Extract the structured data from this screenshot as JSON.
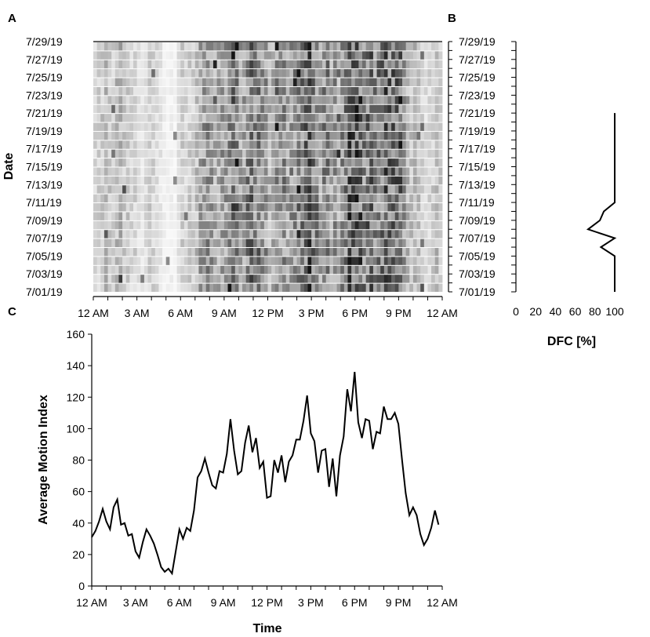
{
  "panels": {
    "a_label": "A",
    "b_label": "B",
    "c_label": "C"
  },
  "chart_data": [
    {
      "type": "heatmap",
      "panel": "A",
      "title": "",
      "xlabel": "",
      "ylabel": "Date",
      "x_tick_labels": [
        "12 AM",
        "3 AM",
        "6 AM",
        "9 AM",
        "12 PM",
        "3 PM",
        "6 PM",
        "9 PM",
        "12 AM"
      ],
      "y_tick_labels": [
        "7/01/19",
        "7/03/19",
        "7/05/19",
        "7/07/19",
        "7/09/19",
        "7/11/19",
        "7/13/19",
        "7/15/19",
        "7/17/19",
        "7/19/19",
        "7/21/19",
        "7/23/19",
        "7/25/19",
        "7/27/19",
        "7/29/19"
      ],
      "rows": [
        "7/01/19",
        "7/02/19",
        "7/03/19",
        "7/04/19",
        "7/05/19",
        "7/06/19",
        "7/07/19",
        "7/08/19",
        "7/09/19",
        "7/10/19",
        "7/11/19",
        "7/12/19",
        "7/13/19",
        "7/14/19",
        "7/15/19",
        "7/16/19",
        "7/17/19",
        "7/18/19",
        "7/19/19",
        "7/20/19",
        "7/21/19",
        "7/22/19",
        "7/23/19",
        "7/24/19",
        "7/25/19",
        "7/26/19",
        "7/27/19",
        "7/28/19",
        "7/29/19"
      ],
      "x_bins": 96,
      "colormap": "white-to-black",
      "values_description_note": "cell intensity follows the diurnal motion profile with day-to-day variation"
    },
    {
      "type": "line",
      "panel": "B",
      "title": "",
      "xlabel": "DFC [%]",
      "ylabel": "",
      "xlim": [
        0,
        100
      ],
      "x_ticks": [
        0,
        20,
        40,
        60,
        80,
        100
      ],
      "y_tick_labels": [
        "7/01/19",
        "7/03/19",
        "7/05/19",
        "7/07/19",
        "7/09/19",
        "7/11/19",
        "7/13/19",
        "7/15/19",
        "7/17/19",
        "7/19/19",
        "7/21/19",
        "7/23/19",
        "7/25/19",
        "7/27/19",
        "7/29/19"
      ],
      "points": [
        {
          "date_index": 0,
          "x": 100
        },
        {
          "date_index": 4,
          "x": 100
        },
        {
          "date_index": 5,
          "x": 86
        },
        {
          "date_index": 6,
          "x": 100
        },
        {
          "date_index": 7,
          "x": 73
        },
        {
          "date_index": 8,
          "x": 85
        },
        {
          "date_index": 9,
          "x": 89
        },
        {
          "date_index": 10,
          "x": 100
        },
        {
          "date_index": 20,
          "x": 100
        }
      ]
    },
    {
      "type": "line",
      "panel": "C",
      "title": "",
      "xlabel": "Time",
      "ylabel": "Average Motion Index",
      "ylim": [
        0,
        160
      ],
      "y_ticks": [
        0,
        20,
        40,
        60,
        80,
        100,
        120,
        140,
        160
      ],
      "x_tick_labels": [
        "12 AM",
        "3 AM",
        "6 AM",
        "9 AM",
        "12 PM",
        "3 PM",
        "6 PM",
        "9 PM",
        "12 AM"
      ],
      "x_hours": [
        0,
        0.25,
        0.5,
        0.75,
        1,
        1.25,
        1.5,
        1.75,
        2,
        2.25,
        2.5,
        2.75,
        3,
        3.25,
        3.5,
        3.75,
        4,
        4.25,
        4.5,
        4.75,
        5,
        5.25,
        5.5,
        5.75,
        6,
        6.25,
        6.5,
        6.75,
        7,
        7.25,
        7.5,
        7.75,
        8,
        8.25,
        8.5,
        8.75,
        9,
        9.25,
        9.5,
        9.75,
        10,
        10.25,
        10.5,
        10.75,
        11,
        11.25,
        11.5,
        11.75,
        12,
        12.25,
        12.5,
        12.75,
        13,
        13.25,
        13.5,
        13.75,
        14,
        14.25,
        14.5,
        14.75,
        15,
        15.25,
        15.5,
        15.75,
        16,
        16.25,
        16.5,
        16.75,
        17,
        17.25,
        17.5,
        17.75,
        18,
        18.25,
        18.5,
        18.75,
        19,
        19.25,
        19.5,
        19.75,
        20,
        20.25,
        20.5,
        20.75,
        21,
        21.25,
        21.5,
        21.75,
        22,
        22.25,
        22.5,
        22.75,
        23,
        23.25,
        23.5,
        23.75
      ],
      "values": [
        31,
        35,
        41,
        49,
        41,
        36,
        50,
        55,
        39,
        40,
        32,
        33,
        22,
        18,
        28,
        36,
        32,
        27,
        20,
        12,
        9,
        11,
        8,
        22,
        36,
        30,
        37,
        35,
        48,
        69,
        73,
        81,
        72,
        64,
        62,
        73,
        72,
        84,
        106,
        86,
        71,
        73,
        91,
        102,
        85,
        94,
        75,
        79,
        56,
        57,
        80,
        72,
        83,
        66,
        79,
        83,
        93,
        93,
        105,
        121,
        97,
        92,
        72,
        86,
        87,
        63,
        81,
        57,
        83,
        95,
        125,
        111,
        136,
        104,
        94,
        106,
        105,
        87,
        98,
        97,
        114,
        106,
        106,
        110,
        103,
        80,
        59,
        45,
        50,
        45,
        33,
        26,
        30,
        37,
        48,
        39
      ]
    }
  ]
}
